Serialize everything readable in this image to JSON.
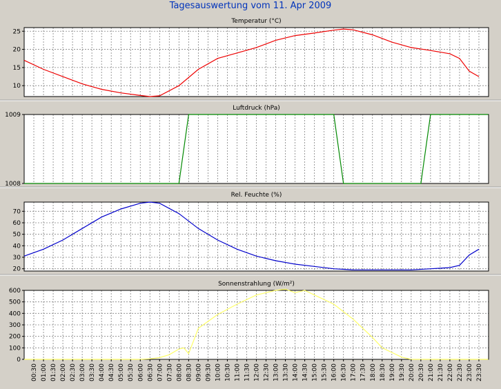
{
  "page_title": "Tagesauswertung vom 11. Apr 2009",
  "colors": {
    "background": "#d4d0c8",
    "plot_background": "#ffffff",
    "title": "#0033bb",
    "grid": "#808080",
    "temperature": "#ee0000",
    "pressure": "#008800",
    "humidity": "#0000cc",
    "radiation": "#ffff66"
  },
  "x_ticks": [
    "00:30",
    "01:00",
    "01:30",
    "02:00",
    "02:30",
    "03:00",
    "03:30",
    "04:00",
    "04:30",
    "05:00",
    "05:30",
    "06:00",
    "06:30",
    "07:00",
    "07:30",
    "08:00",
    "08:30",
    "09:00",
    "09:30",
    "10:00",
    "10:30",
    "11:00",
    "11:30",
    "12:00",
    "12:30",
    "13:00",
    "13:30",
    "14:00",
    "14:30",
    "15:00",
    "15:30",
    "16:00",
    "16:30",
    "17:00",
    "17:30",
    "18:00",
    "18:30",
    "19:00",
    "19:30",
    "20:00",
    "20:30",
    "21:00",
    "21:30",
    "22:00",
    "22:30",
    "23:00",
    "23:30"
  ],
  "chart_data": [
    {
      "type": "line",
      "title": "Temperatur (°C)",
      "ylim": [
        7,
        26
      ],
      "yticks": [
        10,
        15,
        20,
        25
      ],
      "grid": true,
      "x": [
        "00:00",
        "01:00",
        "02:00",
        "03:00",
        "04:00",
        "05:00",
        "06:00",
        "06:30",
        "07:00",
        "08:00",
        "09:00",
        "10:00",
        "11:00",
        "12:00",
        "13:00",
        "14:00",
        "15:00",
        "16:00",
        "16:30",
        "17:00",
        "18:00",
        "19:00",
        "20:00",
        "21:00",
        "22:00",
        "22:30",
        "23:00",
        "23:30"
      ],
      "series": [
        {
          "values": [
            17.0,
            14.5,
            12.5,
            10.5,
            9.0,
            8.0,
            7.3,
            7.0,
            7.2,
            10.0,
            14.5,
            17.5,
            19.0,
            20.5,
            22.5,
            23.8,
            24.5,
            25.3,
            25.6,
            25.4,
            24.0,
            22.0,
            20.5,
            19.7,
            18.8,
            17.5,
            14.0,
            12.5
          ]
        }
      ]
    },
    {
      "type": "line",
      "title": "Luftdruck (hPa)",
      "ylim": [
        1008,
        1009
      ],
      "yticks": [
        1008,
        1009
      ],
      "grid": true,
      "x": [
        "00:00",
        "08:00",
        "08:30",
        "16:00",
        "16:30",
        "20:30",
        "21:00",
        "23:59"
      ],
      "series": [
        {
          "values": [
            1008,
            1008,
            1009,
            1009,
            1008,
            1008,
            1009,
            1009
          ]
        }
      ]
    },
    {
      "type": "line",
      "title": "Rel. Feuchte (%)",
      "ylim": [
        18,
        78
      ],
      "yticks": [
        20,
        30,
        40,
        50,
        60,
        70
      ],
      "grid": true,
      "x": [
        "00:00",
        "01:00",
        "02:00",
        "03:00",
        "04:00",
        "05:00",
        "06:00",
        "06:30",
        "07:00",
        "08:00",
        "09:00",
        "10:00",
        "11:00",
        "12:00",
        "13:00",
        "14:00",
        "15:00",
        "16:00",
        "17:00",
        "18:00",
        "19:00",
        "20:00",
        "21:00",
        "22:00",
        "22:30",
        "23:00",
        "23:30"
      ],
      "series": [
        {
          "values": [
            31,
            37,
            45,
            55,
            65,
            72,
            77,
            78,
            77,
            68,
            55,
            45,
            37,
            31,
            27,
            24,
            22,
            20,
            19,
            19,
            19,
            19,
            20,
            21,
            23,
            32,
            37
          ]
        }
      ]
    },
    {
      "type": "line",
      "title": "Sonnenstrahlung (W/m²)",
      "ylim": [
        0,
        600
      ],
      "yticks": [
        0,
        100,
        200,
        300,
        400,
        500,
        600
      ],
      "grid": true,
      "x": [
        "00:00",
        "06:00",
        "06:30",
        "07:00",
        "07:30",
        "08:00",
        "08:15",
        "08:30",
        "09:00",
        "10:00",
        "11:00",
        "12:00",
        "13:00",
        "13:30",
        "14:00",
        "14:30",
        "15:00",
        "16:00",
        "17:00",
        "18:00",
        "18:30",
        "19:00",
        "19:30",
        "20:00",
        "23:59"
      ],
      "series": [
        {
          "values": [
            0,
            0,
            5,
            15,
            40,
            90,
            100,
            50,
            270,
            390,
            480,
            560,
            600,
            610,
            580,
            600,
            560,
            480,
            350,
            190,
            100,
            60,
            20,
            0,
            0
          ]
        }
      ]
    }
  ]
}
